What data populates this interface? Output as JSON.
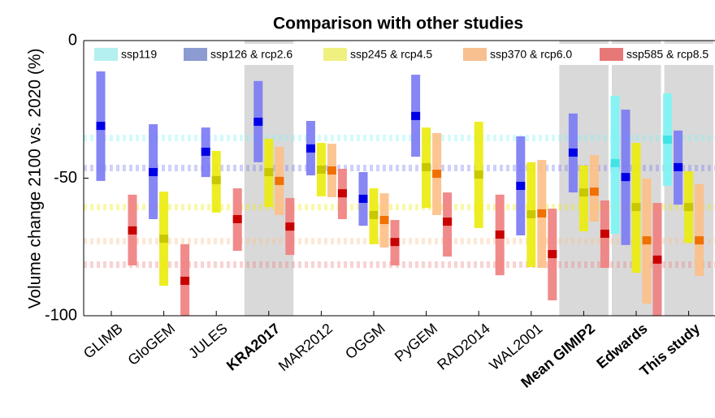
{
  "chart_data": {
    "type": "range",
    "title": "Comparison with other studies",
    "y_label": "Volume change 2100 vs. 2020 (%)",
    "categories": [
      "GLIMB",
      "GloGEM",
      "JULES",
      "KRA2017",
      "MAR2012",
      "OGGM",
      "PyGEM",
      "RAD2014",
      "WAL2001",
      "Mean GIMIP2",
      "Edwards",
      "This study"
    ],
    "highlight": [
      3,
      9,
      10,
      11
    ],
    "ylim": [
      -100,
      0
    ],
    "yticks": [
      0,
      -50,
      -100
    ],
    "series": [
      {
        "name": "ssp119",
        "color": "#80f4f4",
        "median_color": "#40e4e4",
        "legend_color": "#b4f0f0",
        "reference": -35.4,
        "low": [
          null,
          null,
          null,
          null,
          null,
          null,
          null,
          null,
          null,
          null,
          -70.2,
          -52.8
        ],
        "high": [
          null,
          null,
          null,
          null,
          null,
          null,
          null,
          null,
          null,
          null,
          -20.1,
          -19.2
        ],
        "median": [
          null,
          null,
          null,
          null,
          null,
          null,
          null,
          null,
          null,
          null,
          -44.5,
          -36.0
        ]
      },
      {
        "name": "ssp126 & rcp2.6",
        "color": "#7c7cf4",
        "median_color": "#0000e6",
        "legend_color": "#8c9cd2",
        "reference": -46.3,
        "low": [
          -51.0,
          -64.9,
          -49.6,
          -44.2,
          -49.0,
          -67.3,
          -42.2,
          null,
          -70.8,
          -55.2,
          -74.3,
          -59.6
        ],
        "high": [
          -11.2,
          -30.4,
          -31.6,
          -14.7,
          -29.2,
          -47.8,
          -12.4,
          null,
          -34.8,
          -26.5,
          -25.1,
          -32.7
        ],
        "median": [
          -31.0,
          -47.8,
          -40.4,
          -29.5,
          -39.2,
          -57.5,
          -27.4,
          null,
          -52.8,
          -40.7,
          -49.6,
          -46.0
        ]
      },
      {
        "name": "ssp245 & rcp4.5",
        "color": "#ecec10",
        "median_color": "#c8c800",
        "legend_color": "#f0f080",
        "reference": -60.5,
        "low": [
          null,
          -89.1,
          -62.5,
          -60.5,
          -56.6,
          -74.0,
          -60.8,
          -68.1,
          -82.3,
          -69.3,
          -84.4,
          -73.5
        ],
        "high": [
          null,
          -54.9,
          -40.1,
          -35.7,
          -37.2,
          -53.7,
          -31.6,
          -29.5,
          -44.2,
          -45.4,
          -37.2,
          -47.5
        ],
        "median": [
          null,
          -72.0,
          -50.7,
          -47.8,
          -46.9,
          -63.4,
          -46.0,
          -48.7,
          -63.1,
          -55.2,
          -60.5,
          -60.5
        ]
      },
      {
        "name": "ssp370 & rcp6.0",
        "color": "#fcc088",
        "median_color": "#f07000",
        "legend_color": "#f8c090",
        "reference": -72.9,
        "low": [
          null,
          null,
          null,
          -63.4,
          -56.9,
          -75.2,
          -63.4,
          null,
          -82.6,
          -65.8,
          -95.6,
          -85.5
        ],
        "high": [
          null,
          null,
          null,
          -38.6,
          -37.5,
          -55.5,
          -33.6,
          null,
          -43.4,
          -41.6,
          -50.1,
          -52.2
        ],
        "median": [
          null,
          null,
          null,
          -51.0,
          -47.2,
          -65.2,
          -48.4,
          null,
          -62.8,
          -54.9,
          -72.6,
          -72.6
        ]
      },
      {
        "name": "ssp585 & rcp8.5",
        "color": "#f08080",
        "median_color": "#c80000",
        "legend_color": "#e87878",
        "reference": -81.4,
        "low": [
          -81.7,
          -100,
          -76.4,
          -77.9,
          -64.9,
          -81.7,
          -78.5,
          -85.3,
          -94.4,
          -82.6,
          -100,
          null
        ],
        "high": [
          -56.0,
          -74.0,
          -53.7,
          -57.2,
          -46.6,
          -65.2,
          -55.2,
          -56.0,
          -61.1,
          -58.1,
          -59.0,
          null
        ],
        "median": [
          -69.0,
          -87.3,
          -64.9,
          -67.6,
          -55.5,
          -73.2,
          -65.8,
          -70.5,
          -77.6,
          -70.2,
          -79.6,
          null
        ]
      }
    ]
  }
}
